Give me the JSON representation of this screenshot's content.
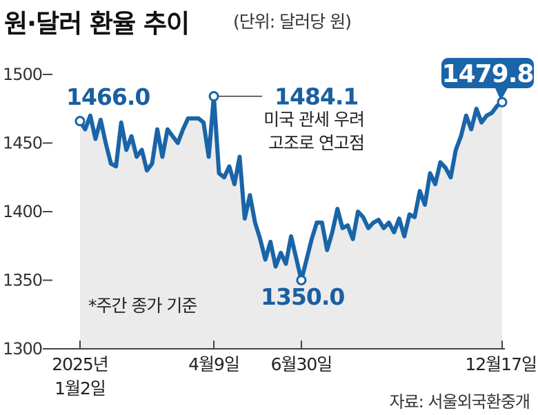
{
  "title": "원·달러 환율 추이",
  "unit_note": "(단위: 달러당 원)",
  "source": "자료: 서울외국환중개",
  "basis_note": "*주간 종가 기준",
  "colors": {
    "line": "#1a64a8",
    "fill": "#ebebeb",
    "axis": "#444444",
    "callout_box": "#1a64a8"
  },
  "chart_data": {
    "type": "line",
    "title": "원·달러 환율 추이",
    "ylabel": "달러당 원",
    "ylim": [
      1300,
      1500
    ],
    "yticks": [
      "1500",
      "1450",
      "1400",
      "1350",
      "1300"
    ],
    "xtick_labels": [
      {
        "line1": "2025년",
        "line2": "1월2일"
      },
      {
        "line1": "4월9일",
        "line2": ""
      },
      {
        "line1": "6월30일",
        "line2": ""
      },
      {
        "line1": "12월17일",
        "line2": ""
      }
    ],
    "annotations": [
      {
        "value": "1466.0",
        "date": "2025-01-02"
      },
      {
        "value": "1484.1",
        "date": "2025-04-09",
        "note_line1": "미국 관세 우려",
        "note_line2": "고조로 연고점"
      },
      {
        "value": "1350.0",
        "date": "2025-06-30"
      },
      {
        "value": "1479.8",
        "date": "2025-12-17"
      }
    ],
    "series": [
      {
        "values": [
          1466.0,
          1460,
          1470,
          1453,
          1467,
          1450,
          1435,
          1433,
          1465,
          1445,
          1455,
          1440,
          1445,
          1430,
          1435,
          1460,
          1440,
          1460,
          1455,
          1450,
          1460,
          1468,
          1468,
          1468,
          1465,
          1440,
          1484.1,
          1428,
          1425,
          1433,
          1420,
          1440,
          1395,
          1412,
          1392,
          1380,
          1365,
          1378,
          1360,
          1370,
          1362,
          1382,
          1366,
          1350.0,
          1365,
          1380,
          1392,
          1392,
          1372,
          1385,
          1402,
          1388,
          1390,
          1380,
          1400,
          1396,
          1388,
          1392,
          1394,
          1388,
          1392,
          1385,
          1395,
          1382,
          1398,
          1396,
          1415,
          1405,
          1428,
          1420,
          1436,
          1432,
          1425,
          1445,
          1455,
          1470,
          1460,
          1475,
          1465,
          1470,
          1472,
          1477,
          1479.8
        ]
      }
    ]
  }
}
